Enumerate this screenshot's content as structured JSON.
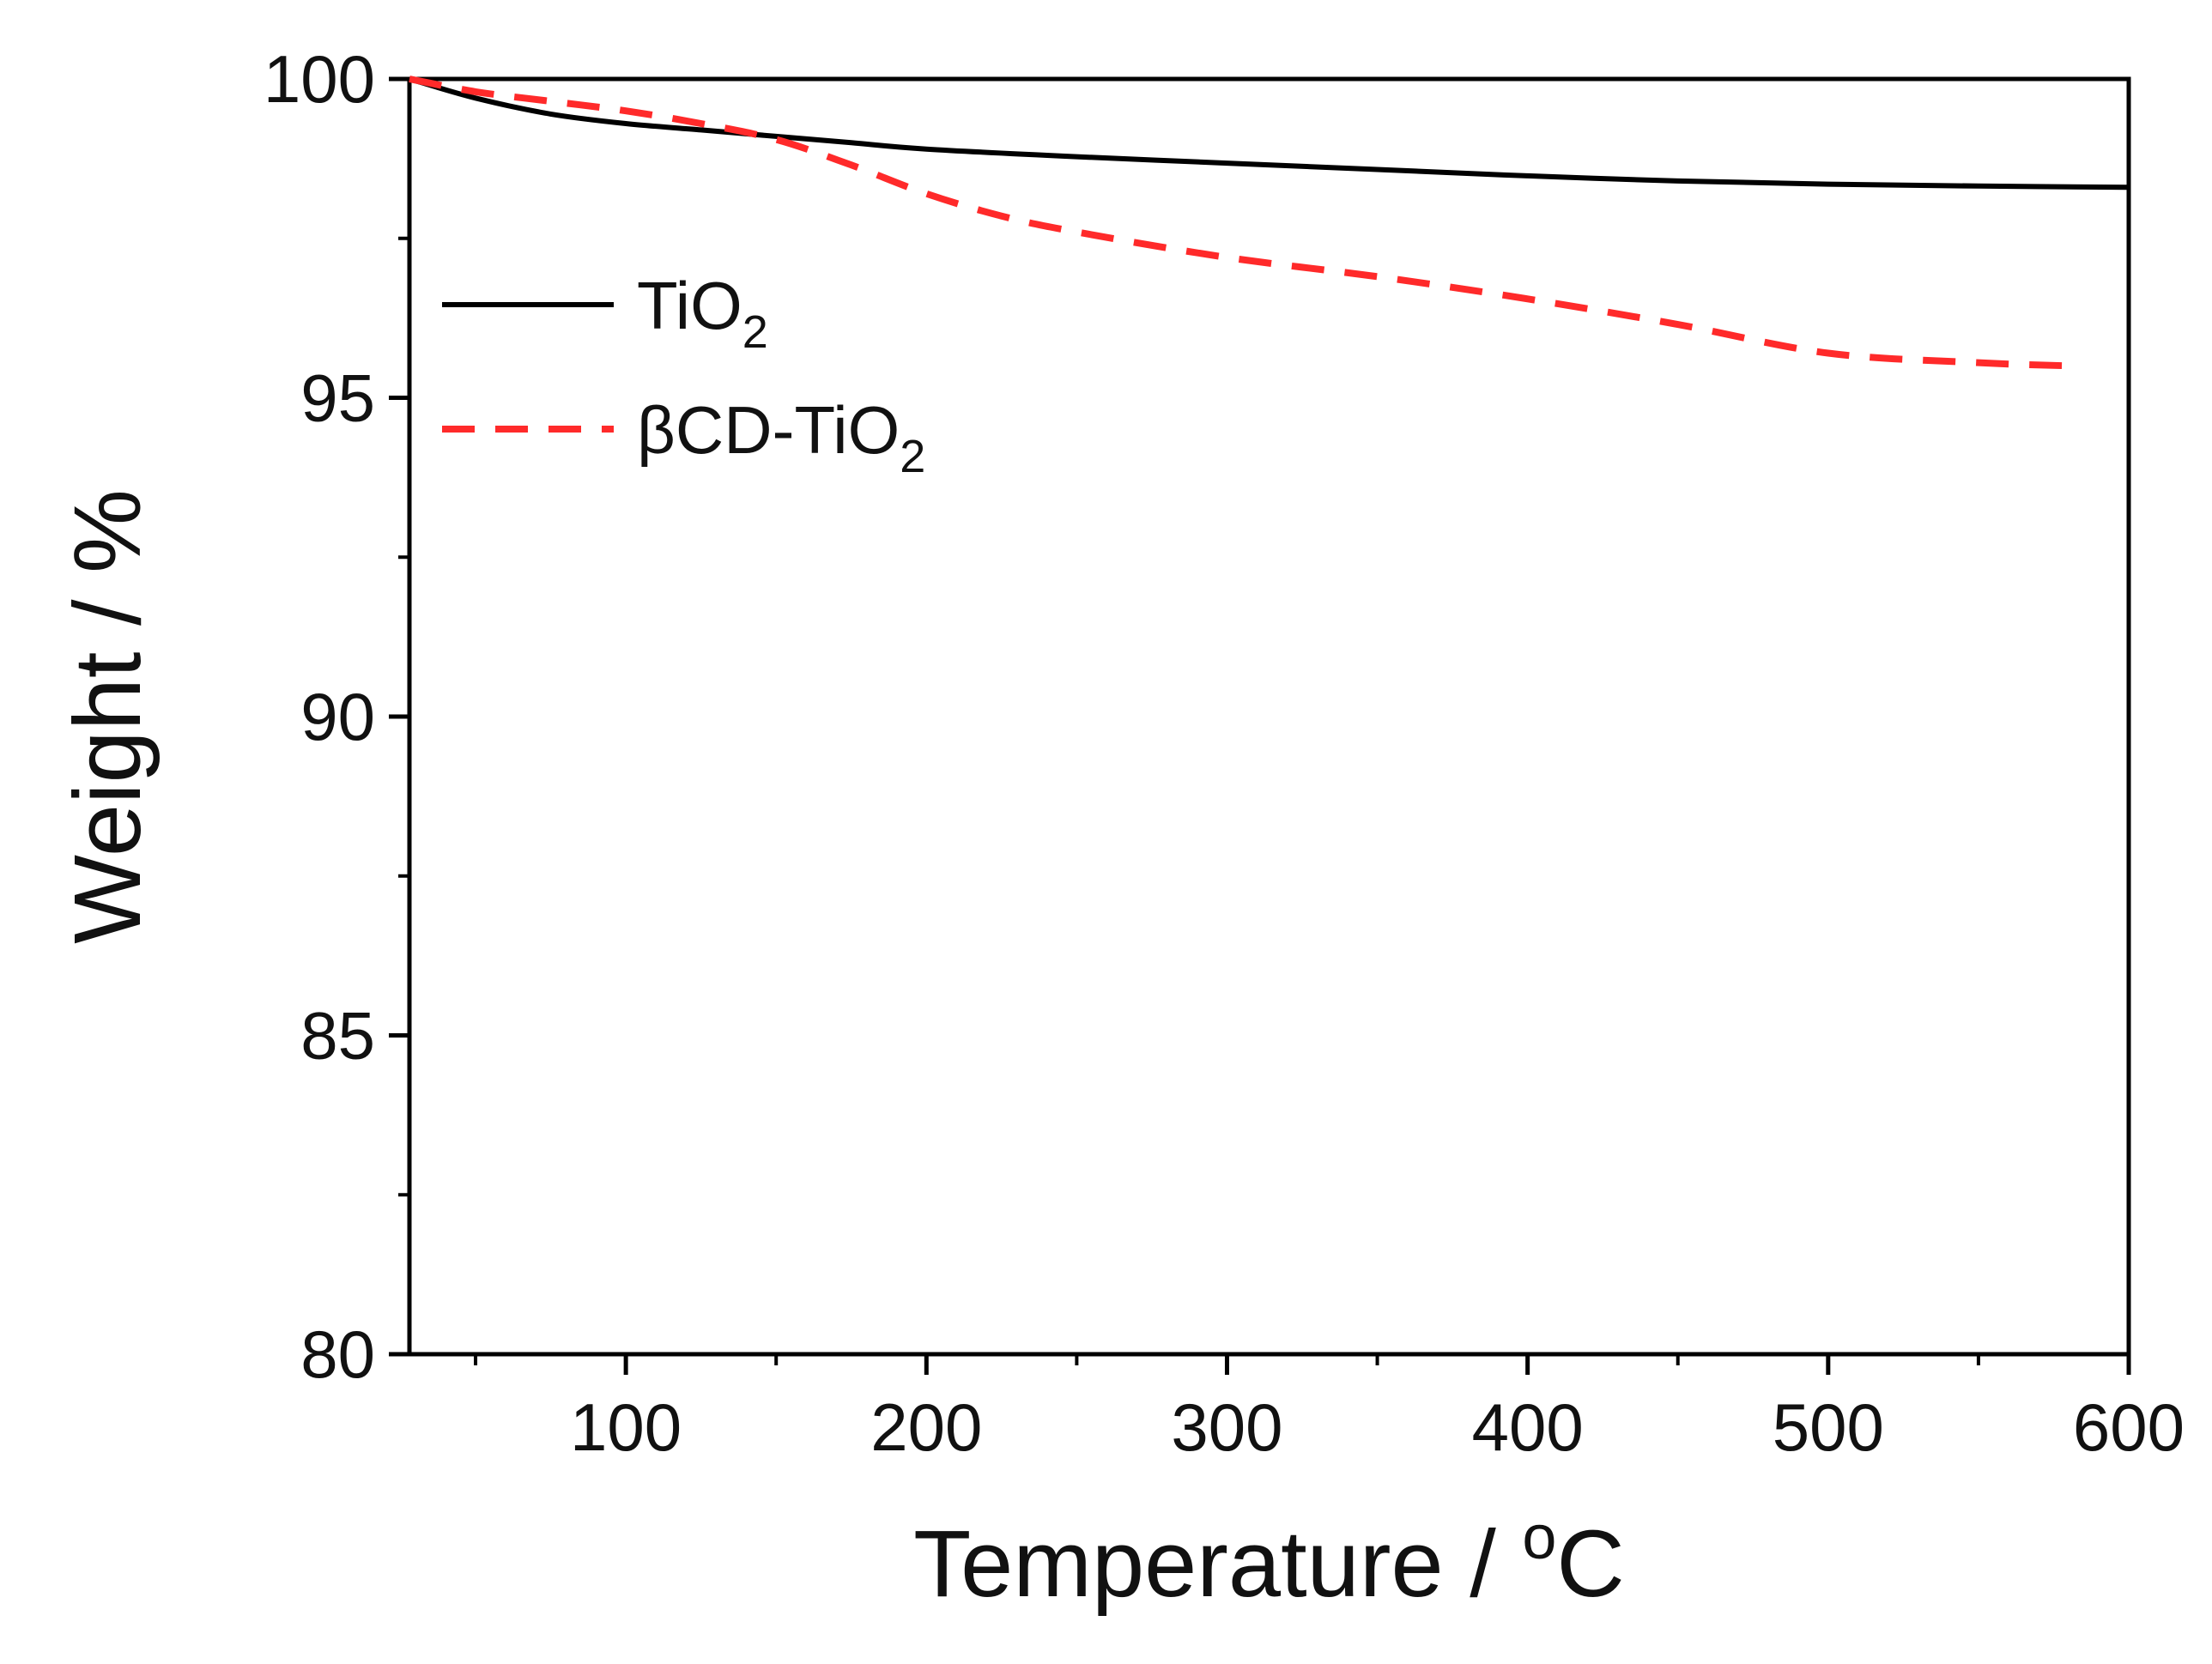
{
  "chart_data": {
    "type": "line",
    "title": "",
    "xlabel": {
      "text": "Temperature / ",
      "sup": "o",
      "unit": "C"
    },
    "ylabel": "Weight / %",
    "xlim": [
      28,
      600
    ],
    "ylim": [
      80,
      100
    ],
    "x_ticks": [
      100,
      200,
      300,
      400,
      500,
      600
    ],
    "x_minor_ticks": [
      50,
      150,
      250,
      350,
      450,
      550
    ],
    "x_tick_labels": [
      "100",
      "200",
      "300",
      "400",
      "500",
      "600"
    ],
    "y_ticks": [
      80,
      85,
      90,
      95,
      100
    ],
    "y_minor_ticks": [
      82.5,
      87.5,
      92.5,
      97.5
    ],
    "y_tick_labels": [
      "80",
      "85",
      "90",
      "95",
      "100"
    ],
    "grid": false,
    "legend_position": "upper-left",
    "series": [
      {
        "name": "TiO2",
        "label_main": "TiO",
        "label_sub": "2",
        "color": "#000000",
        "dash": "solid",
        "x": [
          28,
          50,
          75,
          100,
          125,
          150,
          175,
          200,
          250,
          300,
          350,
          400,
          450,
          500,
          550,
          600
        ],
        "y": [
          100,
          99.7,
          99.45,
          99.3,
          99.2,
          99.1,
          99.0,
          98.9,
          98.78,
          98.68,
          98.58,
          98.48,
          98.4,
          98.35,
          98.32,
          98.3
        ]
      },
      {
        "name": "βCD-TiO2",
        "label_main": "βCD-TiO",
        "label_sub": "2",
        "color": "#ff2a2a",
        "dash": "dashed",
        "x": [
          28,
          50,
          75,
          100,
          125,
          150,
          175,
          200,
          225,
          250,
          300,
          350,
          400,
          450,
          500,
          550,
          580
        ],
        "y": [
          100,
          99.8,
          99.65,
          99.5,
          99.3,
          99.05,
          98.65,
          98.2,
          97.85,
          97.6,
          97.2,
          96.9,
          96.55,
          96.15,
          95.7,
          95.55,
          95.5
        ]
      }
    ]
  }
}
